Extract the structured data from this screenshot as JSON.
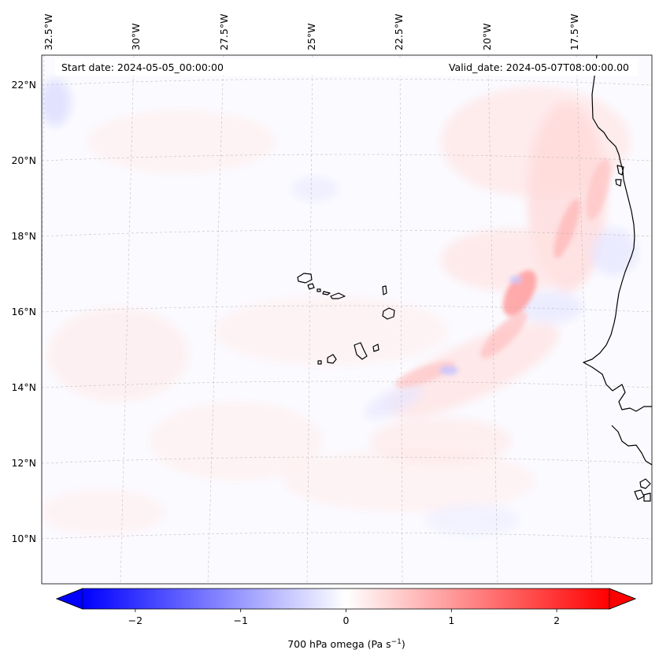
{
  "map": {
    "start_date_text": "Start date: 2024-05-05_00:00:00",
    "valid_date_text": "Valid_date: 2024-05-07T08:00:00.00",
    "lon_labels": [
      "32.5°W",
      "30°W",
      "27.5°W",
      "25°W",
      "22.5°W",
      "20°W",
      "17.5°W"
    ],
    "lat_labels": [
      "22°N",
      "20°N",
      "18°N",
      "16°N",
      "14°N",
      "12°N",
      "10°N"
    ],
    "extent": {
      "lon_min": -32.5,
      "lon_max": -15.3,
      "lat_min": 8.9,
      "lat_max": 22.7
    }
  },
  "colorbar": {
    "label_prefix": "700 hPa omega (Pa s",
    "label_sup": "−1",
    "label_suffix": ")",
    "tick_labels": [
      "−2",
      "−1",
      "0",
      "1",
      "2"
    ],
    "tick_values": [
      -2,
      -1,
      0,
      1,
      2
    ],
    "range": [
      -2.5,
      2.5
    ],
    "color_negative": "#0000ff",
    "color_zero": "#ffffff",
    "color_positive": "#ff0000",
    "extend": "both"
  }
}
